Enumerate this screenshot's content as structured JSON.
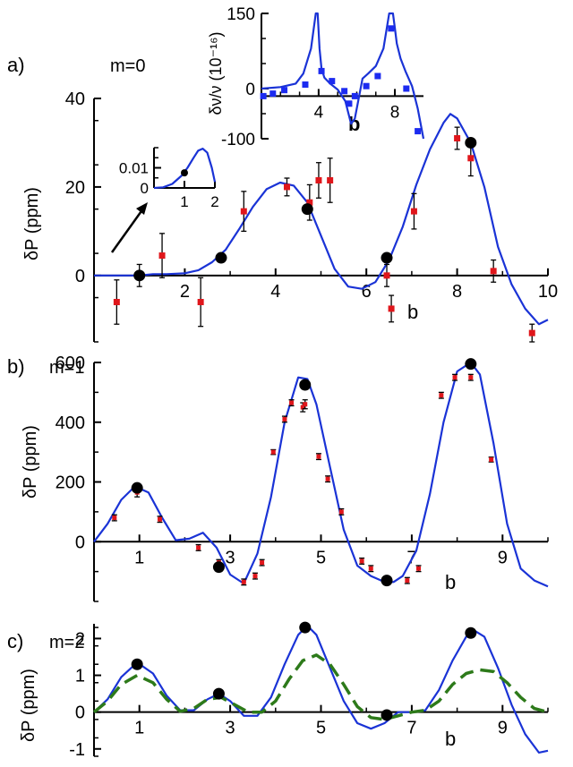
{
  "chart_data": [
    {
      "id": "a",
      "type": "line",
      "panel_label": "a)",
      "mode_label": "m=0",
      "xlabel": "b",
      "ylabel": "δP (ppm)",
      "xlim": [
        0,
        10
      ],
      "ylim": [
        -15,
        40
      ],
      "x_ticks": [
        "2",
        "4",
        "6",
        "8",
        "10"
      ],
      "y_ticks": [
        "0",
        "20",
        "40"
      ],
      "series": [
        {
          "kind": "theory",
          "color": "#1a33d6",
          "x": [
            0,
            0.5,
            1.0,
            1.3,
            1.6,
            2.0,
            2.3,
            2.6,
            2.9,
            3.2,
            3.5,
            3.8,
            4.1,
            4.4,
            4.7,
            5.0,
            5.3,
            5.6,
            5.9,
            6.2,
            6.5,
            6.8,
            7.1,
            7.4,
            7.7,
            7.85,
            8.0,
            8.3,
            8.6,
            8.9,
            9.2,
            9.5,
            9.8,
            10.0
          ],
          "y": [
            0,
            0,
            0,
            0.3,
            0.3,
            0.5,
            1.2,
            3.0,
            5.8,
            10.5,
            15.5,
            19.5,
            21.0,
            20.3,
            16.5,
            9.0,
            1.5,
            -2.5,
            -3.0,
            -1.5,
            3.5,
            11.0,
            20.5,
            28.5,
            34.5,
            36.5,
            35.5,
            30.0,
            20.0,
            6.5,
            -2.0,
            -7.5,
            -11.0,
            -10.0
          ]
        },
        {
          "kind": "computed",
          "color": "#000000",
          "x": [
            1.0,
            2.8,
            4.7,
            6.45,
            8.3
          ],
          "y": [
            0,
            4,
            15,
            4,
            30
          ]
        },
        {
          "kind": "measured",
          "color": "#e0161b",
          "x": [
            0.5,
            1.0,
            1.5,
            2.35,
            3.3,
            4.25,
            4.75,
            4.95,
            5.2,
            6.45,
            6.55,
            7.05,
            8.0,
            8.3,
            8.8,
            9.65
          ],
          "y": [
            -6,
            0,
            4.5,
            -6,
            14.5,
            20,
            16.5,
            21.5,
            21.5,
            0,
            -7.5,
            14.5,
            31,
            26.5,
            1,
            -13
          ],
          "err": [
            5,
            2.5,
            5,
            5.5,
            4.5,
            2,
            4,
            4,
            5,
            2.5,
            3,
            4,
            2.5,
            4,
            2.5,
            2
          ]
        }
      ],
      "insets": [
        {
          "id": "a_inset_left",
          "type": "line",
          "xlim": [
            0,
            2
          ],
          "ylim": [
            0,
            0.02
          ],
          "x_ticks": [
            "1",
            "2"
          ],
          "y_ticks": [
            "0",
            "0.01"
          ],
          "series": [
            {
              "kind": "theory",
              "color": "#1a33d6",
              "x": [
                0,
                0.3,
                0.6,
                0.9,
                1.1,
                1.3,
                1.45,
                1.6,
                1.75,
                1.9,
                2.0
              ],
              "y": [
                0,
                0.0003,
                0.002,
                0.006,
                0.01,
                0.015,
                0.0185,
                0.0195,
                0.0175,
                0.01,
                0.003
              ]
            },
            {
              "kind": "computed",
              "color": "#000000",
              "x": [
                1.0
              ],
              "y": [
                0.0075
              ]
            }
          ]
        },
        {
          "id": "a_inset_top",
          "type": "line",
          "ylabel": "δν/ν (10⁻¹⁶)",
          "xlabel": "b",
          "xlim": [
            1,
            9.5
          ],
          "ylim": [
            -100,
            150
          ],
          "x_ticks": [
            "4",
            "8"
          ],
          "y_ticks": [
            "-100",
            "0",
            "150"
          ],
          "series": [
            {
              "kind": "theory",
              "color": "#1a33d6",
              "x": [
                1,
                2,
                2.8,
                3.2,
                3.6,
                3.85,
                3.95,
                4.05,
                4.15,
                4.3,
                4.6,
                5.0,
                5.4,
                5.7,
                5.9,
                6.1,
                6.3,
                6.6,
                7.0,
                7.4,
                7.7,
                7.9,
                8.0,
                8.1,
                8.3,
                8.55,
                8.9,
                9.2,
                9.5
              ],
              "y": [
                0,
                3,
                10,
                30,
                80,
                150,
                150,
                80,
                40,
                22,
                10,
                -2,
                -25,
                -70,
                -60,
                -20,
                20,
                30,
                45,
                80,
                150,
                150,
                120,
                90,
                60,
                35,
                5,
                -40,
                -100
              ]
            },
            {
              "kind": "measured",
              "color": "#1c2bf0",
              "x": [
                1.1,
                1.6,
                2.2,
                3.3,
                4.15,
                4.7,
                5.35,
                5.6,
                5.9,
                6.5,
                7.1,
                7.8,
                8.6,
                9.2
              ],
              "y": [
                -15,
                -10,
                -3,
                8,
                35,
                15,
                -5,
                -30,
                -15,
                5,
                25,
                120,
                0,
                -85
              ]
            }
          ]
        }
      ]
    },
    {
      "id": "b",
      "type": "line",
      "panel_label": "b)",
      "mode_label": "m=1",
      "xlabel": "b",
      "ylabel": "δP (ppm)",
      "xlim": [
        0,
        10
      ],
      "ylim": [
        -200,
        600
      ],
      "x_ticks": [
        "1",
        "3",
        "5",
        "7",
        "9"
      ],
      "y_ticks": [
        "0",
        "200",
        "400",
        "600"
      ],
      "series": [
        {
          "kind": "theory",
          "color": "#1a33d6",
          "x": [
            0,
            0.3,
            0.6,
            0.9,
            1.2,
            1.5,
            1.8,
            2.1,
            2.4,
            2.7,
            3.0,
            3.3,
            3.6,
            3.9,
            4.2,
            4.5,
            4.7,
            4.9,
            5.2,
            5.5,
            5.8,
            6.1,
            6.4,
            6.6,
            6.8,
            7.1,
            7.4,
            7.7,
            8.0,
            8.3,
            8.5,
            8.8,
            9.1,
            9.4,
            9.7,
            10.0
          ],
          "y": [
            0,
            60,
            140,
            185,
            165,
            80,
            5,
            10,
            30,
            -20,
            -110,
            -140,
            -40,
            150,
            400,
            550,
            545,
            460,
            250,
            40,
            -80,
            -115,
            -135,
            -135,
            -115,
            -30,
            160,
            400,
            570,
            600,
            560,
            330,
            60,
            -90,
            -130,
            -150
          ]
        },
        {
          "kind": "computed",
          "color": "#000000",
          "x": [
            0.95,
            2.75,
            4.65,
            6.45,
            8.3
          ],
          "y": [
            180,
            -85,
            525,
            -130,
            595
          ]
        },
        {
          "kind": "measured",
          "color": "#e0161b",
          "x": [
            0.45,
            0.95,
            1.45,
            2.3,
            2.75,
            3.3,
            3.55,
            3.7,
            3.95,
            4.2,
            4.35,
            4.6,
            4.65,
            4.95,
            5.15,
            5.45,
            5.9,
            6.1,
            6.45,
            6.9,
            7.15,
            7.65,
            7.95,
            8.3,
            8.75
          ],
          "y": [
            80,
            165,
            75,
            -20,
            -70,
            -135,
            -115,
            -70,
            300,
            410,
            465,
            450,
            460,
            285,
            210,
            100,
            -65,
            -90,
            -130,
            -130,
            -90,
            490,
            550,
            550,
            275
          ],
          "err": [
            10,
            15,
            10,
            10,
            10,
            10,
            10,
            10,
            8,
            10,
            10,
            15,
            15,
            10,
            10,
            10,
            10,
            10,
            15,
            10,
            10,
            10,
            10,
            10,
            8
          ]
        }
      ]
    },
    {
      "id": "c",
      "type": "line",
      "panel_label": "c)",
      "mode_label": "m=2",
      "xlabel": "b",
      "ylabel": "δP (ppm)",
      "xlim": [
        0,
        10
      ],
      "ylim": [
        -1.2,
        2.4
      ],
      "x_ticks": [
        "1",
        "3",
        "5",
        "7",
        "9"
      ],
      "y_ticks": [
        "-1",
        "0",
        "1",
        "2"
      ],
      "series": [
        {
          "kind": "theory",
          "color": "#1a33d6",
          "x": [
            0,
            0.3,
            0.6,
            0.95,
            1.3,
            1.6,
            1.9,
            2.2,
            2.5,
            2.75,
            3.0,
            3.3,
            3.6,
            3.9,
            4.2,
            4.5,
            4.7,
            4.9,
            5.2,
            5.5,
            5.8,
            6.1,
            6.4,
            6.7,
            7.0,
            7.3,
            7.6,
            7.9,
            8.2,
            8.4,
            8.6,
            8.9,
            9.2,
            9.5,
            9.8,
            10.0
          ],
          "y": [
            0,
            0.35,
            0.95,
            1.35,
            1.05,
            0.45,
            0.05,
            0.05,
            0.35,
            0.5,
            0.3,
            -0.1,
            -0.1,
            0.4,
            1.3,
            2.1,
            2.35,
            2.1,
            1.2,
            0.3,
            -0.3,
            -0.45,
            -0.3,
            0.0,
            0.0,
            0.05,
            0.6,
            1.4,
            2.05,
            2.2,
            2.05,
            1.2,
            0.2,
            -0.6,
            -1.1,
            -1.05
          ]
        },
        {
          "kind": "dashed",
          "color": "#2d7a1a",
          "x": [
            0,
            0.3,
            0.6,
            0.95,
            1.3,
            1.6,
            1.9,
            2.2,
            2.5,
            2.8,
            3.1,
            3.4,
            3.7,
            4.0,
            4.3,
            4.6,
            4.9,
            5.2,
            5.5,
            5.8,
            6.1,
            6.4,
            6.7,
            7.0,
            7.3,
            7.6,
            7.9,
            8.2,
            8.5,
            8.8,
            9.1,
            9.4,
            9.7,
            10.0
          ],
          "y": [
            0,
            0.3,
            0.75,
            1.0,
            0.8,
            0.35,
            0.02,
            0.1,
            0.35,
            0.4,
            0.2,
            0.0,
            0.0,
            0.3,
            0.9,
            1.4,
            1.55,
            1.3,
            0.75,
            0.15,
            -0.15,
            -0.2,
            -0.1,
            0.0,
            0.05,
            0.3,
            0.75,
            1.05,
            1.15,
            1.1,
            0.8,
            0.4,
            0.1,
            0.0
          ]
        },
        {
          "kind": "computed",
          "color": "#000000",
          "x": [
            0.95,
            2.75,
            4.65,
            6.45,
            8.3
          ],
          "y": [
            1.3,
            0.5,
            2.3,
            -0.08,
            2.15
          ]
        }
      ]
    }
  ]
}
